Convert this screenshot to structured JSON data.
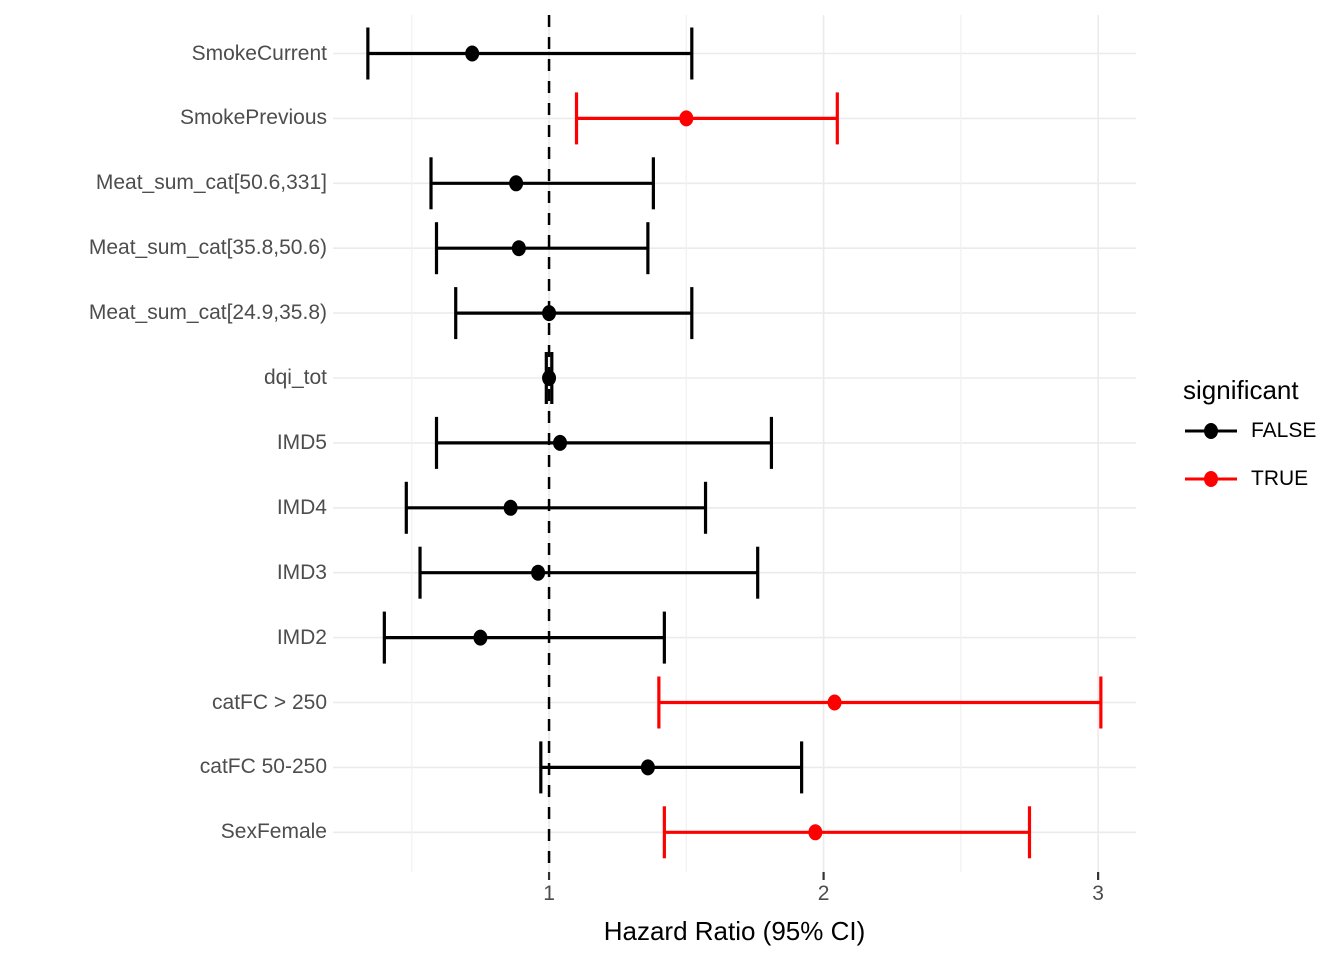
{
  "chart_data": {
    "type": "scatter",
    "subtype": "forest_plot",
    "title": "",
    "xlabel": "Hazard Ratio (95% CI)",
    "ylabel": "",
    "xlim": [
      0.213,
      3.138
    ],
    "x_ticks": [
      1,
      2,
      3
    ],
    "x_tick_labels": [
      "1",
      "2",
      "3"
    ],
    "x_minor_gridlines": [
      0.5,
      1.5,
      2.5
    ],
    "reference_line_x": 1,
    "grid": "major-and-minor",
    "legend": {
      "position": "right",
      "title": "significant",
      "items": [
        {
          "label": "FALSE",
          "significant": false,
          "color": "#000000"
        },
        {
          "label": "TRUE",
          "significant": true,
          "color": "#FF0000"
        }
      ]
    },
    "colors": {
      "false_series": "#000000",
      "true_series": "#FF0000",
      "gridline_major": "#EBEBEB",
      "gridline_minor": "#F2F2F2",
      "axis_text": "#4D4D4D",
      "tick_mark": "#333333",
      "reference_line": "#000000",
      "background": "#FFFFFF"
    },
    "rows": [
      {
        "label": "SmokeCurrent",
        "estimate": 0.72,
        "lower": 0.34,
        "upper": 1.52,
        "significant": false
      },
      {
        "label": "SmokePrevious",
        "estimate": 1.5,
        "lower": 1.1,
        "upper": 2.05,
        "significant": true
      },
      {
        "label": "Meat_sum_cat[50.6,331]",
        "estimate": 0.88,
        "lower": 0.57,
        "upper": 1.38,
        "significant": false
      },
      {
        "label": "Meat_sum_cat[35.8,50.6)",
        "estimate": 0.89,
        "lower": 0.59,
        "upper": 1.36,
        "significant": false
      },
      {
        "label": "Meat_sum_cat[24.9,35.8)",
        "estimate": 1.0,
        "lower": 0.66,
        "upper": 1.52,
        "significant": false
      },
      {
        "label": "dqi_tot",
        "estimate": 1.0,
        "lower": 0.99,
        "upper": 1.01,
        "significant": false
      },
      {
        "label": "IMD5",
        "estimate": 1.04,
        "lower": 0.59,
        "upper": 1.81,
        "significant": false
      },
      {
        "label": "IMD4",
        "estimate": 0.86,
        "lower": 0.48,
        "upper": 1.57,
        "significant": false
      },
      {
        "label": "IMD3",
        "estimate": 0.96,
        "lower": 0.53,
        "upper": 1.76,
        "significant": false
      },
      {
        "label": "IMD2",
        "estimate": 0.75,
        "lower": 0.4,
        "upper": 1.42,
        "significant": false
      },
      {
        "label": "catFC > 250",
        "estimate": 2.04,
        "lower": 1.4,
        "upper": 3.01,
        "significant": true
      },
      {
        "label": "catFC 50-250",
        "estimate": 1.36,
        "lower": 0.97,
        "upper": 1.92,
        "significant": false
      },
      {
        "label": "SexFemale",
        "estimate": 1.97,
        "lower": 1.42,
        "upper": 2.75,
        "significant": true
      }
    ]
  }
}
